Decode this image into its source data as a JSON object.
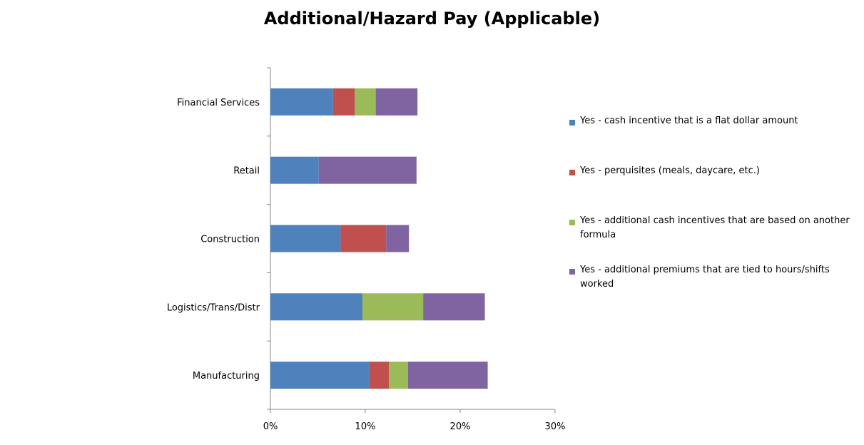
{
  "chart_data": {
    "type": "bar",
    "orientation": "horizontal",
    "stacked": true,
    "title": "Additional/Hazard Pay (Applicable)",
    "categories": [
      "Financial Services",
      "Retail",
      "Construction",
      "Logistics/Trans/Distr",
      "Manufacturing"
    ],
    "series": [
      {
        "name": "Yes - cash incentive that is a flat dollar amount",
        "color": "#4F81BD",
        "values": [
          6.6,
          5.1,
          7.4,
          9.7,
          10.4
        ]
      },
      {
        "name": "Yes - perquisites (meals, daycare, etc.)",
        "color": "#C0504D",
        "values": [
          2.3,
          0,
          4.8,
          0,
          2.1
        ]
      },
      {
        "name": "Yes - additional cash incentives that are based on another formula",
        "color": "#9BBB59",
        "values": [
          2.2,
          0,
          0,
          6.4,
          2.0
        ]
      },
      {
        "name": "Yes - additional premiums that are tied to hours/shifts worked",
        "color": "#8064A2",
        "values": [
          4.4,
          10.3,
          2.4,
          6.5,
          8.4
        ]
      }
    ],
    "x_ticks": [
      "0%",
      "10%",
      "20%",
      "30%"
    ],
    "xlim": [
      0,
      30
    ],
    "value_unit": "%",
    "xlabel": "",
    "ylabel": "",
    "grid": false,
    "legend_position": "right"
  }
}
